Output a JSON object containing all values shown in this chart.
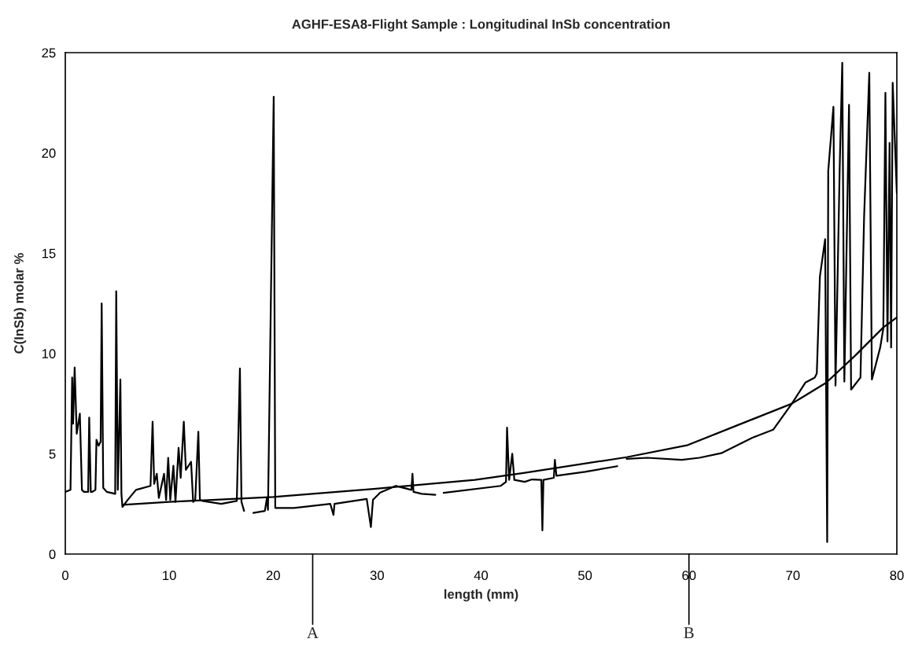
{
  "chart_data": {
    "type": "line",
    "title": "AGHF-ESA8-Flight Sample : Longitudinal InSb concentration",
    "xlabel": "length (mm)",
    "ylabel": "C(InSb) molar %",
    "xlim": [
      0,
      80
    ],
    "ylim": [
      0,
      25
    ],
    "xticks": [
      0,
      10,
      20,
      30,
      40,
      50,
      60,
      70,
      80
    ],
    "yticks": [
      0,
      5,
      10,
      15,
      20,
      25
    ],
    "grid": false,
    "legend": false,
    "marker": "none",
    "line_style": "solid",
    "series": [
      {
        "color": "#000000",
        "x": [
          0,
          0.5,
          0.66,
          0.75,
          0.9,
          1.1,
          1.4,
          1.6,
          1.8,
          2.2,
          2.3,
          2.45,
          2.6,
          2.9,
          3.0,
          3.2,
          3.4,
          3.5,
          3.65,
          4.0,
          4.8,
          4.9,
          5.05,
          5.3,
          5.4,
          5.5,
          6.0,
          6.8,
          8.2,
          8.4,
          8.55,
          8.8,
          9.0,
          9.5,
          9.7,
          9.9,
          10.1,
          10.4,
          10.6,
          10.9,
          11.1,
          11.4,
          11.6,
          12.1,
          12.3,
          12.5,
          12.8,
          12.95,
          13.2,
          15.0,
          16.5,
          16.8,
          16.95,
          17.2,
          17.6,
          18.1,
          19.2,
          19.4,
          19.5,
          20.05,
          20.2,
          22.0,
          25.5,
          25.8,
          25.9,
          29.0,
          29.4,
          29.6,
          30.3,
          31.8,
          33.3,
          33.4,
          33.5,
          34.3,
          35.6,
          36.0,
          36.4,
          41.9,
          42.4,
          42.5,
          42.7,
          43.0,
          43.2,
          44.2,
          44.9,
          45.8,
          45.9,
          46.0,
          47.0,
          47.1,
          47.25,
          50.0,
          53.1,
          53.5,
          54.0,
          56.0,
          59.3,
          61.0,
          63.1,
          66.1,
          68.1,
          69.9,
          71.2,
          72.1,
          72.3,
          72.6,
          73.1,
          73.3,
          73.4,
          73.9,
          74.1,
          74.5,
          74.75,
          74.95,
          75.4,
          75.6,
          76.5,
          76.85,
          77.35,
          77.6,
          78.4,
          78.7,
          78.9,
          79.1,
          79.3,
          79.45,
          79.6,
          80.0
        ],
        "values": [
          3.1,
          3.2,
          8.8,
          6.5,
          9.3,
          6.0,
          7.0,
          3.2,
          3.1,
          3.1,
          6.8,
          3.1,
          3.1,
          3.2,
          5.7,
          5.4,
          5.6,
          12.5,
          3.3,
          3.1,
          3.0,
          13.1,
          3.2,
          8.7,
          3.0,
          2.35,
          2.7,
          3.2,
          3.4,
          6.6,
          3.5,
          4.0,
          2.8,
          4.0,
          2.7,
          4.8,
          2.7,
          4.4,
          2.6,
          5.3,
          3.8,
          6.6,
          4.2,
          4.6,
          2.6,
          2.7,
          6.1,
          2.7,
          2.65,
          2.5,
          2.65,
          9.25,
          2.6,
          2.15,
          null,
          2.05,
          2.15,
          2.8,
          2.2,
          22.8,
          2.3,
          2.3,
          2.5,
          1.95,
          2.5,
          2.75,
          1.35,
          2.7,
          3.07,
          3.4,
          3.2,
          4.0,
          3.1,
          3.0,
          2.95,
          null,
          3.05,
          3.4,
          3.6,
          6.3,
          3.7,
          5.0,
          3.7,
          3.6,
          3.72,
          3.7,
          1.18,
          3.7,
          3.8,
          4.7,
          3.9,
          4.1,
          4.38,
          null,
          4.75,
          4.8,
          4.7,
          4.8,
          5.03,
          5.8,
          6.2,
          7.5,
          8.55,
          8.8,
          9.0,
          13.85,
          15.7,
          0.6,
          19.1,
          22.3,
          8.4,
          19.2,
          24.5,
          8.6,
          22.4,
          8.2,
          8.8,
          16.8,
          24.0,
          8.7,
          10.3,
          11.25,
          23.0,
          10.6,
          20.5,
          10.3,
          23.5,
          18.0
        ]
      },
      {
        "color": "#000000",
        "x": [
          5.5,
          10,
          20,
          29.9,
          39.4,
          44.2,
          54.0,
          59.8,
          64.9,
          69.9,
          73.2,
          76.0,
          78.7,
          80.0
        ],
        "values": [
          2.45,
          2.6,
          2.85,
          3.26,
          3.7,
          4.05,
          4.83,
          5.42,
          6.47,
          7.5,
          8.54,
          9.9,
          11.3,
          11.8
        ]
      }
    ],
    "ref_lines": [
      {
        "axis": "x",
        "value": 23.8,
        "label": "A"
      },
      {
        "axis": "x",
        "value": 60,
        "label": "B"
      }
    ]
  }
}
